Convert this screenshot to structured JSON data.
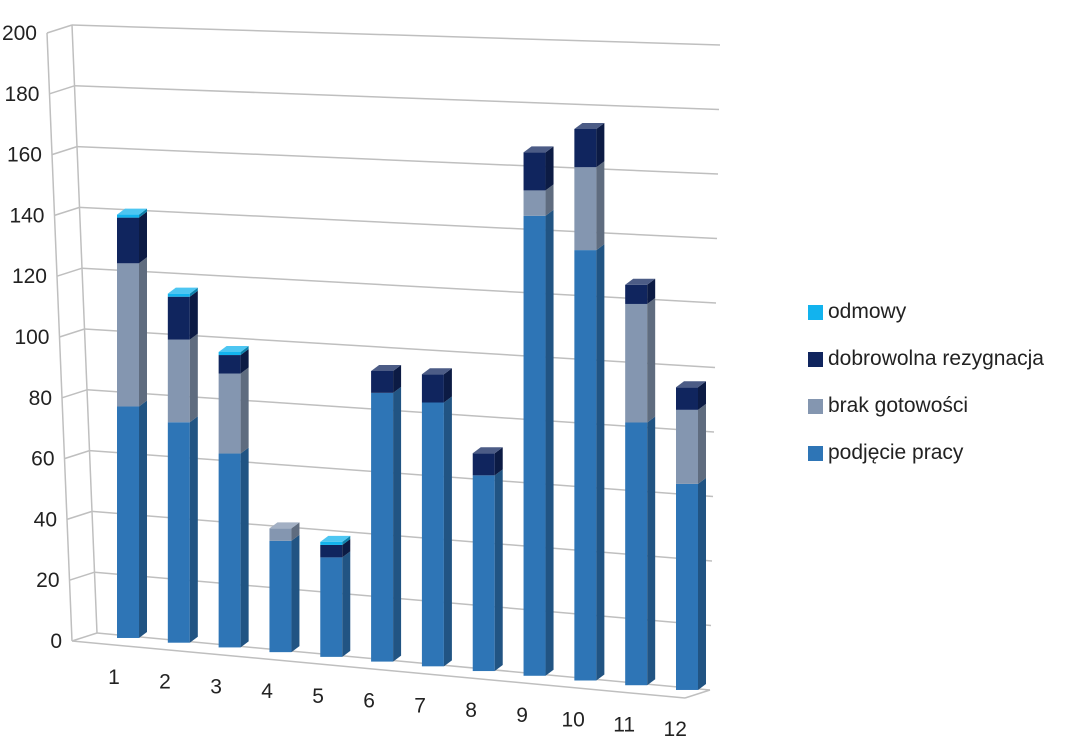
{
  "chart_data": {
    "type": "bar",
    "stacked": true,
    "three_d": true,
    "categories": [
      "1",
      "2",
      "3",
      "4",
      "5",
      "6",
      "7",
      "8",
      "9",
      "10",
      "11",
      "12"
    ],
    "series": [
      {
        "name": "podjęcie pracy",
        "color": "#2e75b6",
        "values": [
          76,
          72,
          63,
          36,
          32,
          86,
          84,
          62,
          145,
          135,
          82,
          64
        ]
      },
      {
        "name": "brak gotowości",
        "color": "#8496b0",
        "values": [
          47,
          27,
          26,
          4,
          0,
          0,
          0,
          0,
          8,
          26,
          37,
          23
        ]
      },
      {
        "name": "dobrowolna rezygnacja",
        "color": "#10255e",
        "values": [
          15,
          14,
          6,
          0,
          4,
          7,
          9,
          7,
          12,
          12,
          6,
          7
        ]
      },
      {
        "name": "odmowy",
        "color": "#12b3ee",
        "values": [
          1,
          1,
          1,
          0,
          1,
          0,
          0,
          0,
          0,
          0,
          0,
          0
        ]
      }
    ],
    "y_ticks": [
      "0",
      "20",
      "40",
      "60",
      "80",
      "100",
      "120",
      "140",
      "160",
      "180",
      "200"
    ],
    "ylim": [
      0,
      200
    ],
    "grid": true,
    "legend_position": "right",
    "title": "",
    "xlabel": "",
    "ylabel": ""
  }
}
